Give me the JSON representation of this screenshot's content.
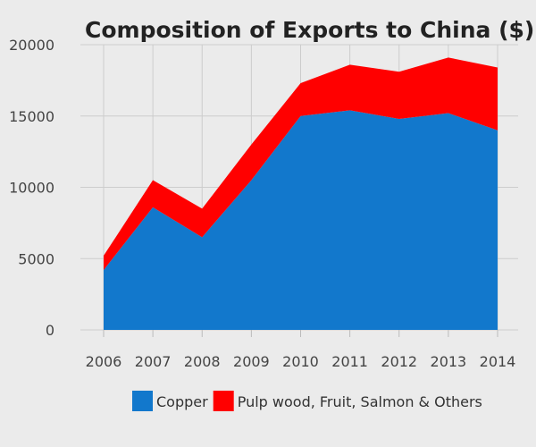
{
  "chart_data": {
    "type": "area",
    "stacked": true,
    "title": "Composition of Exports to China ($)",
    "xlabel": "",
    "ylabel": "",
    "x": [
      "2006",
      "2007",
      "2008",
      "2009",
      "2010",
      "2011",
      "2012",
      "2013",
      "2014"
    ],
    "ylim": [
      0,
      20000
    ],
    "yticks": [
      "0",
      "5000",
      "10000",
      "15000",
      "20000"
    ],
    "grid": true,
    "legend_position": "bottom",
    "series": [
      {
        "name": "Copper",
        "color": "#1278cc",
        "values": [
          4200,
          8600,
          6500,
          10500,
          15000,
          15400,
          14800,
          15200,
          14000
        ]
      },
      {
        "name": "Pulp wood, Fruit, Salmon & Others",
        "color": "#ff0000",
        "values": [
          1000,
          1900,
          2000,
          2500,
          2300,
          3200,
          3300,
          3900,
          4400
        ]
      }
    ]
  }
}
